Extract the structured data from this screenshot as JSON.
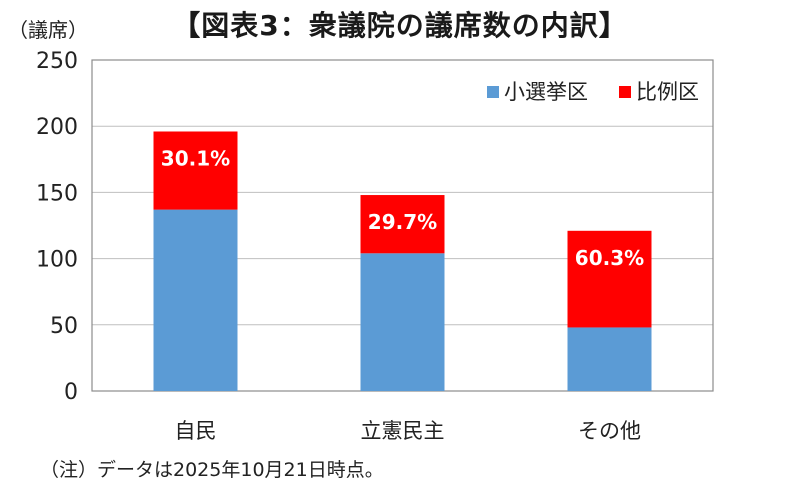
{
  "title": "【図表3：衆議院の議席数の内訳】",
  "y_unit": "（議席）",
  "note": "（注）データは2025年10月21日時点。",
  "colors": {
    "small_district": "#5b9bd5",
    "proportional": "#ff0000",
    "grid": "#bfbfbf"
  },
  "chart_data": {
    "type": "bar",
    "stacked": true,
    "categories": [
      "自民",
      "立憲民主",
      "その他"
    ],
    "series": [
      {
        "name": "小選挙区",
        "values": [
          137,
          104,
          48
        ]
      },
      {
        "name": "比例区",
        "values": [
          59,
          44,
          73
        ]
      }
    ],
    "data_labels": [
      "30.1%",
      "29.7%",
      "60.3%"
    ],
    "ylim": [
      0,
      250
    ],
    "yticks": [
      0,
      50,
      100,
      150,
      200,
      250
    ],
    "grid": true,
    "legend_position": "top-right"
  }
}
